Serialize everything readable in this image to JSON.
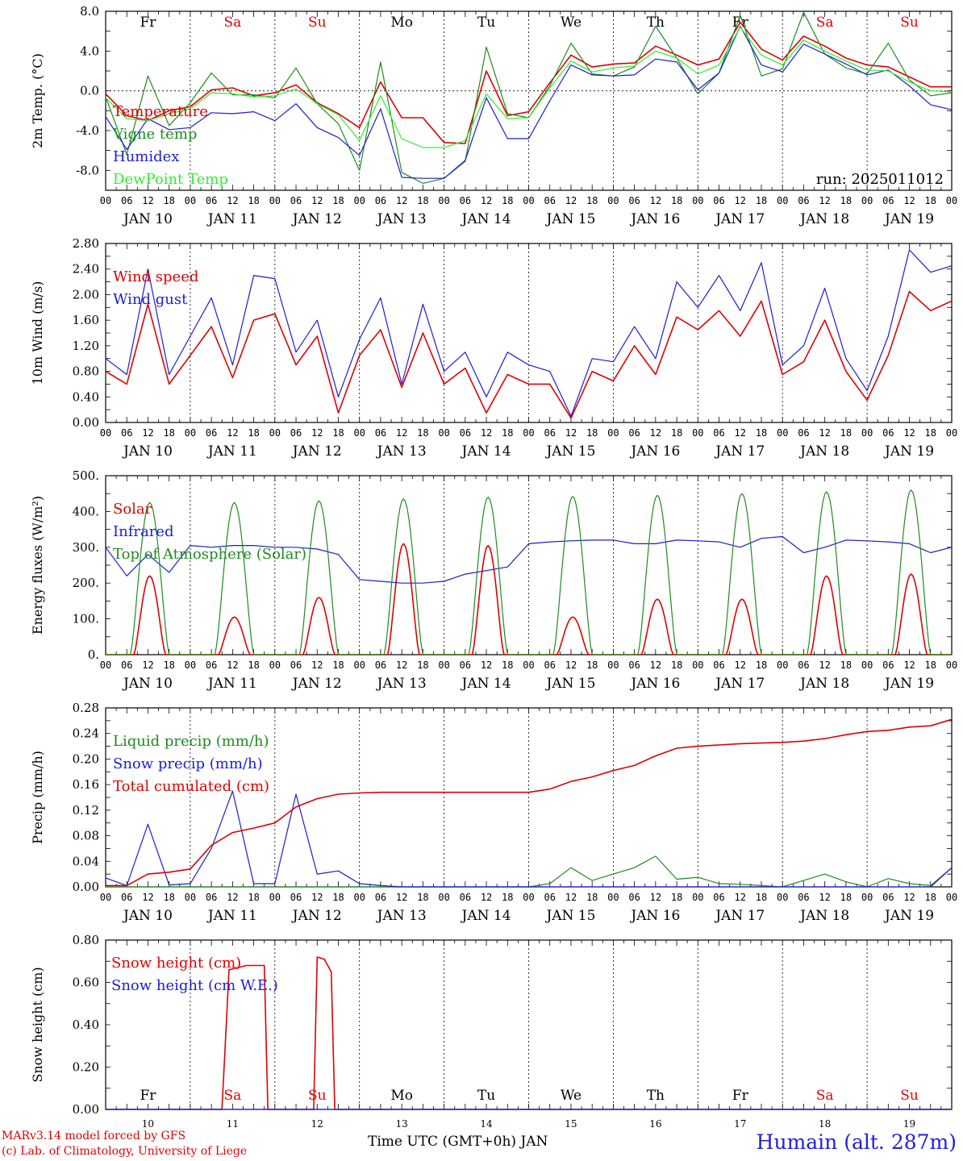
{
  "colors": {
    "red": "#e00000",
    "green": "#1e8c1e",
    "blue": "#1c1cd8",
    "lightgreen": "#30ee30",
    "axis": "#000000",
    "weekend": "#e00000"
  },
  "run_label": "run: 2025011012",
  "footer": {
    "credit1": "MARv3.14 model forced by GFS",
    "credit2": "(c) Lab. of Climatology, University of Liege",
    "xtitle": "Time UTC (GMT+0h) JAN",
    "station": "Humain (alt. 287m)"
  },
  "days": [
    "Fr",
    "Sa",
    "Su",
    "Mo",
    "Tu",
    "We",
    "Th",
    "Fr",
    "Sa",
    "Su"
  ],
  "weekend_flags": [
    false,
    true,
    true,
    false,
    false,
    false,
    false,
    false,
    true,
    true
  ],
  "date_labels": [
    "JAN 10",
    "JAN 11",
    "JAN 12",
    "JAN 13",
    "JAN 14",
    "JAN 15",
    "JAN 16",
    "JAN 17",
    "JAN 18",
    "JAN 19"
  ],
  "bottom_dates": [
    "10",
    "11",
    "12",
    "13",
    "14",
    "15",
    "16",
    "17",
    "18",
    "19"
  ],
  "hour_ticks": [
    "00",
    "06",
    "12",
    "18"
  ],
  "chart_data": [
    {
      "type": "line",
      "ylabel": "2m Temp. (°C)",
      "ylim": [
        -10,
        8
      ],
      "yticks": [
        -8.0,
        -4.0,
        0.0,
        4.0,
        8.0
      ],
      "ytick_labels": [
        "-8.0",
        "-4.0",
        "0.0",
        "4.0",
        "8.0"
      ],
      "x_hours": [
        0,
        6,
        12,
        18,
        24,
        30,
        36,
        42,
        48,
        54,
        60,
        66,
        72,
        78,
        84,
        90,
        96,
        102,
        108,
        114,
        120,
        126,
        132,
        138,
        144,
        150,
        156,
        162,
        168,
        174,
        180,
        186,
        192,
        198,
        204,
        210,
        216,
        222,
        228,
        234,
        240
      ],
      "series": [
        {
          "name": "Temperature",
          "color": "red",
          "values": [
            -0.3,
            -2.5,
            -3.0,
            -2.0,
            -1.6,
            0.1,
            0.3,
            -0.5,
            -0.2,
            0.6,
            -1.2,
            -2.3,
            -3.7,
            0.9,
            -2.7,
            -2.7,
            -5.2,
            -5.3,
            2.0,
            -2.5,
            -2.1,
            0.8,
            3.6,
            2.4,
            2.7,
            2.8,
            4.5,
            3.6,
            2.6,
            3.2,
            6.9,
            4.2,
            3.1,
            5.5,
            4.5,
            3.3,
            2.6,
            2.4,
            1.4,
            0.4,
            0.4
          ]
        },
        {
          "name": "Vigne temp",
          "color": "green",
          "values": [
            -0.6,
            -6.4,
            1.5,
            -3.5,
            -1.2,
            1.8,
            -0.4,
            -0.4,
            -0.7,
            2.3,
            -1.3,
            -3.3,
            -8.0,
            2.9,
            -8.2,
            -9.3,
            -8.8,
            -7.1,
            4.4,
            -2.3,
            -2.7,
            0.5,
            4.8,
            1.7,
            1.5,
            2.4,
            6.5,
            3.3,
            -0.3,
            1.8,
            7.6,
            1.5,
            2.2,
            7.9,
            3.7,
            2.3,
            1.7,
            4.8,
            1.1,
            -0.5,
            -0.2
          ]
        },
        {
          "name": "Humidex",
          "color": "blue",
          "values": [
            -2.6,
            -5.9,
            -2.8,
            -3.9,
            -3.7,
            -2.2,
            -2.3,
            -2.1,
            -3.0,
            -1.3,
            -3.7,
            -4.7,
            -6.5,
            -1.8,
            -8.7,
            -8.8,
            -8.8,
            -7.0,
            -0.7,
            -4.8,
            -4.8,
            -1.0,
            2.6,
            1.6,
            1.5,
            1.6,
            3.2,
            2.9,
            0.1,
            1.8,
            6.5,
            2.6,
            1.9,
            4.7,
            3.7,
            2.7,
            1.6,
            2.1,
            0.5,
            -1.4,
            -1.9
          ]
        },
        {
          "name": "DewPoint Temp",
          "color": "lightgreen",
          "values": [
            -0.7,
            -2.8,
            -3.0,
            -2.3,
            -1.8,
            -0.2,
            -0.3,
            -0.6,
            -0.5,
            0.2,
            -1.3,
            -2.4,
            -5.0,
            -0.5,
            -4.8,
            -5.7,
            -5.7,
            -5.0,
            -0.3,
            -2.8,
            -2.7,
            0.3,
            3.0,
            1.9,
            2.3,
            2.5,
            4.0,
            3.3,
            1.7,
            2.6,
            6.4,
            3.6,
            2.6,
            5.1,
            4.0,
            3.0,
            2.1,
            2.0,
            0.9,
            0.0,
            -0.1
          ]
        }
      ]
    },
    {
      "type": "line",
      "ylabel": "10m Wind (m/s)",
      "ylim": [
        0,
        2.8
      ],
      "yticks": [
        0,
        0.4,
        0.8,
        1.2,
        1.6,
        2.0,
        2.4,
        2.8
      ],
      "ytick_labels": [
        "0.00",
        "0.40",
        "0.80",
        "1.20",
        "1.60",
        "2.00",
        "2.40",
        "2.80"
      ],
      "x_hours": [
        0,
        6,
        12,
        18,
        24,
        30,
        36,
        42,
        48,
        54,
        60,
        66,
        72,
        78,
        84,
        90,
        96,
        102,
        108,
        114,
        120,
        126,
        132,
        138,
        144,
        150,
        156,
        162,
        168,
        174,
        180,
        186,
        192,
        198,
        204,
        210,
        216,
        222,
        228,
        234,
        240
      ],
      "series": [
        {
          "name": "Wind speed",
          "color": "red",
          "values": [
            0.8,
            0.6,
            1.85,
            0.6,
            1.05,
            1.5,
            0.7,
            1.6,
            1.7,
            0.9,
            1.35,
            0.15,
            1.05,
            1.45,
            0.55,
            1.4,
            0.6,
            0.85,
            0.15,
            0.75,
            0.6,
            0.6,
            0.07,
            0.8,
            0.65,
            1.2,
            0.75,
            1.65,
            1.45,
            1.75,
            1.35,
            1.9,
            0.75,
            0.95,
            1.6,
            0.8,
            0.35,
            1.05,
            2.05,
            1.75,
            1.9
          ]
        },
        {
          "name": "Wind gust",
          "color": "blue",
          "values": [
            1.0,
            0.75,
            2.4,
            0.75,
            1.35,
            1.95,
            0.9,
            2.3,
            2.25,
            1.1,
            1.6,
            0.4,
            1.3,
            1.95,
            0.6,
            1.85,
            0.8,
            1.1,
            0.4,
            1.1,
            0.9,
            0.8,
            0.1,
            1.0,
            0.95,
            1.5,
            1.0,
            2.2,
            1.8,
            2.3,
            1.75,
            2.5,
            0.9,
            1.2,
            2.1,
            1.0,
            0.5,
            1.35,
            2.7,
            2.35,
            2.45
          ]
        }
      ]
    },
    {
      "type": "line",
      "ylabel": "Energy fluxes (W/m²)",
      "ylim": [
        0,
        500
      ],
      "yticks": [
        0,
        100,
        200,
        300,
        400,
        500
      ],
      "ytick_labels": [
        "0.",
        "100.",
        "200.",
        "300.",
        "400.",
        "500."
      ],
      "series": [
        {
          "name": "Solar",
          "color": "red",
          "peaks": [
            220,
            105,
            160,
            310,
            305,
            105,
            155,
            155,
            220,
            225
          ]
        },
        {
          "name": "Infrared",
          "color": "blue",
          "x_hours": [
            0,
            6,
            12,
            18,
            24,
            30,
            36,
            42,
            48,
            54,
            60,
            66,
            72,
            78,
            84,
            90,
            96,
            102,
            108,
            114,
            120,
            126,
            132,
            138,
            144,
            150,
            156,
            162,
            168,
            174,
            180,
            186,
            192,
            198,
            204,
            210,
            216,
            222,
            228,
            234,
            240
          ],
          "values": [
            300,
            220,
            280,
            230,
            305,
            300,
            305,
            305,
            300,
            300,
            295,
            280,
            210,
            205,
            200,
            200,
            205,
            225,
            235,
            245,
            310,
            315,
            318,
            320,
            320,
            310,
            310,
            320,
            318,
            315,
            300,
            325,
            330,
            285,
            300,
            320,
            318,
            315,
            310,
            285,
            300
          ]
        },
        {
          "name": "Top of Atmosphere (Solar)",
          "color": "green",
          "peaks": [
            425,
            425,
            430,
            435,
            440,
            442,
            445,
            450,
            455,
            460
          ]
        }
      ]
    },
    {
      "type": "line",
      "ylabel": "Precip (mm/h)",
      "ylim": [
        0,
        0.28
      ],
      "yticks": [
        0,
        0.04,
        0.08,
        0.12,
        0.16,
        0.2,
        0.24,
        0.28
      ],
      "ytick_labels": [
        "0.00",
        "0.04",
        "0.08",
        "0.12",
        "0.16",
        "0.20",
        "0.24",
        "0.28"
      ],
      "x_hours": [
        0,
        6,
        12,
        18,
        24,
        30,
        36,
        42,
        48,
        54,
        60,
        66,
        72,
        78,
        84,
        90,
        96,
        102,
        108,
        114,
        120,
        126,
        132,
        138,
        144,
        150,
        156,
        162,
        168,
        174,
        180,
        186,
        192,
        198,
        204,
        210,
        216,
        222,
        228,
        234,
        240
      ],
      "series": [
        {
          "name": "Liquid precip (mm/h)",
          "color": "green",
          "values": [
            0,
            0,
            0,
            0,
            0,
            0,
            0,
            0,
            0,
            0,
            0,
            0,
            0,
            0,
            0,
            0,
            0,
            0,
            0,
            0,
            0,
            0.005,
            0.03,
            0.01,
            0.02,
            0.03,
            0.048,
            0.012,
            0.015,
            0.005,
            0.004,
            0.002,
            0,
            0.01,
            0.02,
            0.008,
            0,
            0.013,
            0.005,
            0.002,
            0.03
          ]
        },
        {
          "name": "Snow precip (mm/h)",
          "color": "blue",
          "values": [
            0.014,
            0.002,
            0.098,
            0.003,
            0.005,
            0.06,
            0.15,
            0.005,
            0.005,
            0.145,
            0.02,
            0.025,
            0.005,
            0.002,
            0,
            0,
            0,
            0,
            0,
            0,
            0,
            0,
            0,
            0,
            0,
            0,
            0,
            0,
            0,
            0,
            0,
            0,
            0,
            0,
            0,
            0,
            0,
            0,
            0,
            0,
            0.03
          ]
        },
        {
          "name": "Total cumulated (cm)",
          "color": "red",
          "values": [
            0.002,
            0.002,
            0.02,
            0.023,
            0.028,
            0.065,
            0.085,
            0.092,
            0.1,
            0.125,
            0.138,
            0.145,
            0.147,
            0.148,
            0.148,
            0.148,
            0.148,
            0.148,
            0.148,
            0.148,
            0.148,
            0.153,
            0.165,
            0.172,
            0.182,
            0.19,
            0.205,
            0.217,
            0.22,
            0.222,
            0.224,
            0.225,
            0.226,
            0.228,
            0.232,
            0.238,
            0.243,
            0.245,
            0.25,
            0.252,
            0.262
          ]
        }
      ]
    },
    {
      "type": "line",
      "ylabel": "Snow height (cm)",
      "ylim": [
        0,
        0.8
      ],
      "yticks": [
        0,
        0.2,
        0.4,
        0.6,
        0.8
      ],
      "ytick_labels": [
        "0.00",
        "0.20",
        "0.40",
        "0.60",
        "0.80"
      ],
      "series": [
        {
          "name": "Snow height (cm)",
          "color": "red",
          "points": [
            [
              0,
              0
            ],
            [
              33,
              0
            ],
            [
              35,
              0.66
            ],
            [
              40,
              0.68
            ],
            [
              45,
              0.68
            ],
            [
              46,
              0
            ],
            [
              59,
              0
            ],
            [
              60,
              0.72
            ],
            [
              62,
              0.71
            ],
            [
              64,
              0.65
            ],
            [
              65,
              0
            ],
            [
              240,
              0
            ]
          ]
        },
        {
          "name": "Snow height (cm W.E.)",
          "color": "blue",
          "points": [
            [
              0,
              0
            ],
            [
              240,
              0
            ]
          ]
        }
      ]
    }
  ]
}
